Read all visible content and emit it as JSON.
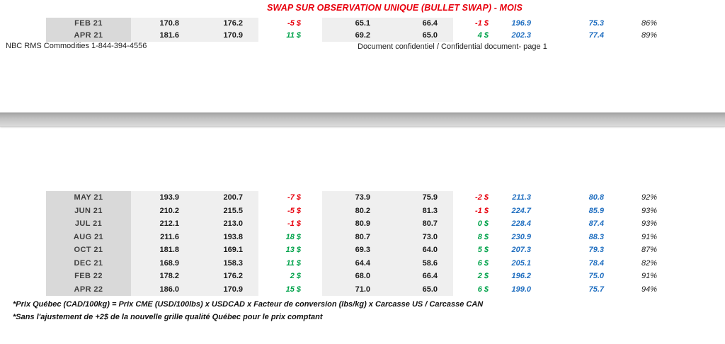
{
  "title": "SWAP SUR OBSERVATION UNIQUE (BULLET SWAP) - MOIS",
  "column_semantics": [
    "month",
    "price-cad-swap",
    "price-cad-spot",
    "diff-cad",
    "price-usd-swap",
    "price-usd-spot",
    "diff-usd",
    "quebec-price",
    "quebec-price-2",
    "ratio-percent"
  ],
  "pages": {
    "page1": {
      "rows": [
        [
          "FEB 21",
          "170.8",
          "176.2",
          "-5 $",
          "65.1",
          "66.4",
          "-1 $",
          "196.9",
          "75.3",
          "86%"
        ],
        [
          "APR 21",
          "181.6",
          "170.9",
          "11 $",
          "69.2",
          "65.0",
          "4 $",
          "202.3",
          "77.4",
          "89%"
        ]
      ],
      "footer_left": "NBC RMS Commodities 1-844-394-4556",
      "footer_center": "Document confidentiel / Confidential document- page 1"
    },
    "page2": {
      "rows": [
        [
          "MAY 21",
          "193.9",
          "200.7",
          "-7 $",
          "73.9",
          "75.9",
          "-2 $",
          "211.3",
          "80.8",
          "92%"
        ],
        [
          "JUN 21",
          "210.2",
          "215.5",
          "-5 $",
          "80.2",
          "81.3",
          "-1 $",
          "224.7",
          "85.9",
          "93%"
        ],
        [
          "JUL 21",
          "212.1",
          "213.0",
          "-1 $",
          "80.9",
          "80.7",
          "0 $",
          "228.4",
          "87.4",
          "93%"
        ],
        [
          "AUG 21",
          "211.6",
          "193.8",
          "18 $",
          "80.7",
          "73.0",
          "8 $",
          "230.9",
          "88.3",
          "91%"
        ],
        [
          "OCT 21",
          "181.8",
          "169.1",
          "13 $",
          "69.3",
          "64.0",
          "5 $",
          "207.3",
          "79.3",
          "87%"
        ],
        [
          "DEC 21",
          "168.9",
          "158.3",
          "11 $",
          "64.4",
          "58.6",
          "6 $",
          "205.1",
          "78.4",
          "82%"
        ],
        [
          "FEB 22",
          "178.2",
          "176.2",
          "2 $",
          "68.0",
          "66.4",
          "2 $",
          "196.2",
          "75.0",
          "91%"
        ],
        [
          "APR 22",
          "186.0",
          "170.9",
          "15 $",
          "71.0",
          "65.0",
          "6 $",
          "199.0",
          "75.7",
          "94%"
        ]
      ],
      "footnotes": [
        "*Prix Québec (CAD/100kg) = Prix CME (USD/100lbs) x USDCAD x Facteur de conversion (lbs/kg) x Carcasse US / Carcasse CAN",
        "*Sans l'ajustement de +2$ de la nouvelle grille qualité Québec pour le prix comptant"
      ]
    }
  },
  "colors": {
    "title_red": "#e8000d",
    "negative_red": "#e8000d",
    "positive_green": "#00a24a",
    "price_blue": "#1f6ec0",
    "month_bg": "#d9d9d9",
    "value_bg": "#efefef",
    "page_band_gray": "#b5b5b5"
  }
}
